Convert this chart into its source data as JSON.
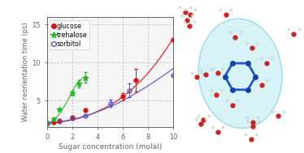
{
  "xlabel": "Sugar concentration (molal)",
  "ylabel": "Water reorientation time (ps)",
  "xlim": [
    0,
    10
  ],
  "ylim": [
    1.5,
    16
  ],
  "yticks": [
    5,
    10,
    15
  ],
  "xticks": [
    0,
    2,
    4,
    6,
    8,
    10
  ],
  "glucose_x": [
    0.0,
    0.5,
    1.0,
    2.0,
    3.0,
    6.0,
    7.0,
    10.0
  ],
  "glucose_y": [
    2.0,
    2.1,
    2.3,
    2.8,
    3.7,
    5.5,
    7.7,
    13.0
  ],
  "glucose_yerr": [
    0.0,
    0.0,
    0.0,
    0.0,
    0.0,
    0.5,
    1.5,
    0.0
  ],
  "glucose_color": "#dd1111",
  "glucose_fit_x": [
    0.0,
    0.3,
    0.6,
    1.0,
    1.5,
    2.0,
    2.5,
    3.0,
    3.5,
    4.0,
    4.5,
    5.0,
    5.5,
    6.0,
    6.5,
    7.0,
    7.5,
    8.0,
    8.5,
    9.0,
    9.5,
    10.0
  ],
  "glucose_fit_y": [
    2.0,
    2.03,
    2.08,
    2.15,
    2.28,
    2.45,
    2.65,
    2.9,
    3.2,
    3.55,
    3.95,
    4.4,
    4.9,
    5.5,
    6.15,
    6.9,
    7.7,
    8.6,
    9.6,
    10.7,
    11.9,
    13.2
  ],
  "trehalose_x": [
    0.0,
    0.5,
    1.0,
    2.0,
    2.5,
    3.0
  ],
  "trehalose_y": [
    2.0,
    2.5,
    3.8,
    6.0,
    7.2,
    8.0
  ],
  "trehalose_yerr": [
    0.0,
    0.0,
    0.0,
    0.3,
    0.5,
    0.7
  ],
  "trehalose_color": "#22bb22",
  "trehalose_fit_x": [
    0.0,
    0.2,
    0.4,
    0.6,
    0.8,
    1.0,
    1.2,
    1.4,
    1.6,
    1.8,
    2.0,
    2.2,
    2.4,
    2.6,
    2.8,
    3.0
  ],
  "trehalose_fit_y": [
    2.0,
    2.1,
    2.3,
    2.55,
    2.9,
    3.3,
    3.8,
    4.35,
    4.95,
    5.55,
    6.2,
    6.8,
    7.3,
    7.65,
    7.9,
    8.1
  ],
  "sorbitol_x": [
    0.0,
    1.0,
    2.0,
    3.0,
    5.0,
    6.5,
    10.0
  ],
  "sorbitol_y": [
    2.0,
    2.2,
    2.7,
    3.0,
    4.6,
    6.3,
    8.3
  ],
  "sorbitol_yerr": [
    0.0,
    0.0,
    0.0,
    0.0,
    0.5,
    0.9,
    0.0
  ],
  "sorbitol_color": "#5555cc",
  "sorbitol_fit_x": [
    0.0,
    0.5,
    1.0,
    1.5,
    2.0,
    2.5,
    3.0,
    3.5,
    4.0,
    4.5,
    5.0,
    5.5,
    6.0,
    6.5,
    7.0,
    7.5,
    8.0,
    8.5,
    9.0,
    9.5,
    10.0
  ],
  "sorbitol_fit_y": [
    2.0,
    2.08,
    2.18,
    2.32,
    2.5,
    2.7,
    2.95,
    3.2,
    3.5,
    3.82,
    4.18,
    4.55,
    4.97,
    5.42,
    5.9,
    6.4,
    6.92,
    7.47,
    8.03,
    8.6,
    9.2
  ],
  "legend_glucose": "glucose",
  "legend_trehalose": "trehalose",
  "legend_sorbitol": "sorbitol",
  "grid_color": "#aaaaaa",
  "axis_color": "#666666",
  "bg_color": "#f5f5f5",
  "right_bg": "#e8f4f8"
}
